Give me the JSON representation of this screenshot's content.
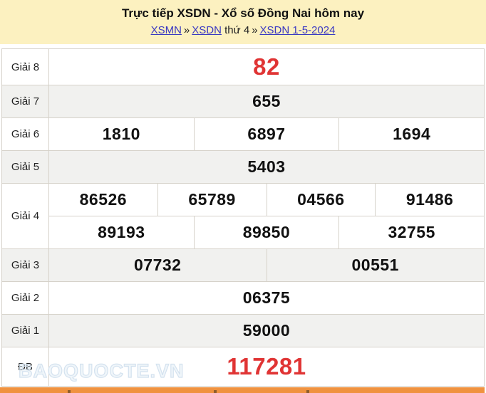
{
  "colors": {
    "header_bg": "#fcf1c0",
    "link": "#3a38c2",
    "accent_red": "#e03434",
    "row_alt_bg": "#f1f1ef",
    "border": "#d6d2ca",
    "bottom_bar": "#f0923f",
    "watermark": "#d4e2ef"
  },
  "header": {
    "title": "Trực tiếp XSDN - Xổ số Đồng Nai hôm nay",
    "breadcrumb": {
      "link_xsmn": "XSMN",
      "separator1": "»",
      "link_xsdn": "XSDN",
      "plain_text": "thứ 4",
      "separator2": "»",
      "link_date": "XSDN 1-5-2024"
    }
  },
  "results": {
    "rows": [
      {
        "label": "Giải 8",
        "highlight": true,
        "groups": [
          [
            "82"
          ]
        ]
      },
      {
        "label": "Giải 7",
        "highlight": false,
        "groups": [
          [
            "655"
          ]
        ]
      },
      {
        "label": "Giải 6",
        "highlight": false,
        "groups": [
          [
            "1810",
            "6897",
            "1694"
          ]
        ]
      },
      {
        "label": "Giải 5",
        "highlight": false,
        "groups": [
          [
            "5403"
          ]
        ]
      },
      {
        "label": "Giải 4",
        "highlight": false,
        "groups": [
          [
            "86526",
            "65789",
            "04566",
            "91486"
          ],
          [
            "89193",
            "89850",
            "32755"
          ]
        ]
      },
      {
        "label": "Giải 3",
        "highlight": false,
        "groups": [
          [
            "07732",
            "00551"
          ]
        ]
      },
      {
        "label": "Giải 2",
        "highlight": false,
        "groups": [
          [
            "06375"
          ]
        ]
      },
      {
        "label": "Giải 1",
        "highlight": false,
        "groups": [
          [
            "59000"
          ]
        ]
      },
      {
        "label": "ĐB",
        "highlight": true,
        "groups": [
          [
            "117281"
          ]
        ]
      }
    ]
  },
  "watermark_text": "BAOQUOCTE.VN"
}
